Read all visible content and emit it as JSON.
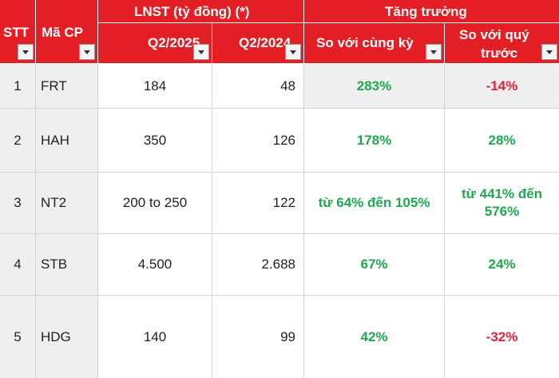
{
  "header": {
    "stt": "STT",
    "ma_cp": "Mã CP",
    "lnst_group": "LNST (tỷ đồng) (*)",
    "q2_2025": "Q2/2025",
    "q2_2024": "Q2/2024",
    "growth_group": "Tăng trưởng",
    "yoy": "So với cùng kỳ",
    "qoq_line1": "So với quý",
    "qoq_line2": "trước"
  },
  "rows": [
    {
      "stt": "1",
      "code": "FRT",
      "q2_2025": "184",
      "q2_2024": "48",
      "yoy": "283%",
      "qoq": "-14%",
      "yoy_sign": "pos",
      "qoq_sign": "neg"
    },
    {
      "stt": "2",
      "code": "HAH",
      "q2_2025": "350",
      "q2_2024": "126",
      "yoy": "178%",
      "qoq": "28%",
      "yoy_sign": "pos",
      "qoq_sign": "pos"
    },
    {
      "stt": "3",
      "code": "NT2",
      "q2_2025": "200 to 250",
      "q2_2024": "122",
      "yoy": "từ 64% đến 105%",
      "qoq": "từ 441% đến 576%",
      "yoy_sign": "pos",
      "qoq_sign": "pos"
    },
    {
      "stt": "4",
      "code": "STB",
      "q2_2025": "4.500",
      "q2_2024": "2.688",
      "yoy": "67%",
      "qoq": "24%",
      "yoy_sign": "pos",
      "qoq_sign": "pos"
    },
    {
      "stt": "5",
      "code": "HDG",
      "q2_2025": "140",
      "q2_2024": "99",
      "yoy": "42%",
      "qoq": "-32%",
      "yoy_sign": "pos",
      "qoq_sign": "neg"
    }
  ],
  "colors": {
    "header_bg": "#e31e24",
    "positive": "#1fa84f",
    "negative": "#e0223a"
  }
}
